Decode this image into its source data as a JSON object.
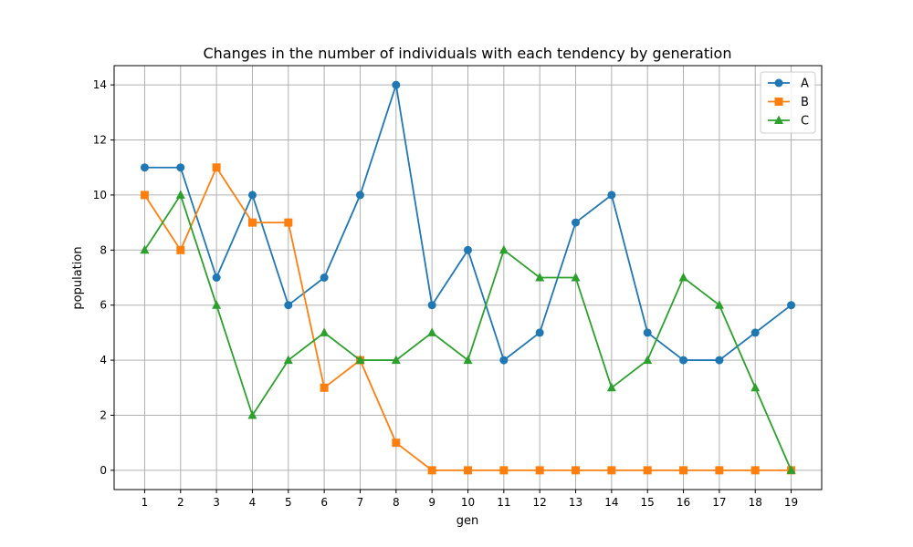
{
  "chart_data": {
    "type": "line",
    "title": "Changes in the number of individuals with each tendency by generation",
    "xlabel": "gen",
    "ylabel": "population",
    "x": [
      1,
      2,
      3,
      4,
      5,
      6,
      7,
      8,
      9,
      10,
      11,
      12,
      13,
      14,
      15,
      16,
      17,
      18,
      19
    ],
    "xlim": [
      0.15,
      19.85
    ],
    "ylim": [
      -0.7,
      14.7
    ],
    "yticks": [
      0,
      2,
      4,
      6,
      8,
      10,
      12,
      14
    ],
    "grid": true,
    "legend_position": "top-right",
    "series": [
      {
        "name": "A",
        "color": "#1f77b4",
        "marker": "circle",
        "values": [
          11,
          11,
          7,
          10,
          6,
          7,
          10,
          14,
          6,
          8,
          4,
          5,
          9,
          10,
          5,
          4,
          4,
          5,
          6
        ]
      },
      {
        "name": "B",
        "color": "#ff7f0e",
        "marker": "square",
        "values": [
          10,
          8,
          11,
          9,
          9,
          3,
          4,
          1,
          0,
          0,
          0,
          0,
          0,
          0,
          0,
          0,
          0,
          0,
          0
        ]
      },
      {
        "name": "C",
        "color": "#2ca02c",
        "marker": "triangle",
        "values": [
          8,
          10,
          6,
          2,
          4,
          5,
          4,
          4,
          5,
          4,
          8,
          7,
          7,
          3,
          4,
          7,
          6,
          3,
          0
        ]
      }
    ]
  }
}
